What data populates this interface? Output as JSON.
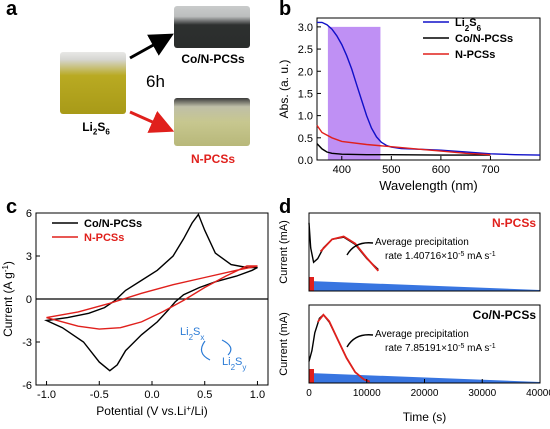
{
  "panels": {
    "a": {
      "letter": "a",
      "vial_left_label": "Li",
      "vial_left_sub": "2",
      "vial_left_s": "S",
      "vial_left_sub2": "6",
      "time_label": "6h",
      "vial_top_label": "Co/N-PCSs",
      "vial_bottom_label": "N-PCSs",
      "colors": {
        "arrow_top": "#000000",
        "arrow_bottom": "#e0201c",
        "vial_liquid_left": "#b8a81a",
        "vial_liquid_top": "#2e3130",
        "vial_liquid_bottom": "#c4c48a"
      }
    },
    "b": {
      "letter": "b"
    },
    "c": {
      "letter": "c"
    },
    "d": {
      "letter": "d"
    }
  },
  "chart_data": [
    {
      "id": "b",
      "type": "line",
      "xlabel": "Wavelength (nm)",
      "ylabel": "Abs. (a. u.)",
      "xlim": [
        350,
        800
      ],
      "ylim": [
        0,
        3.2
      ],
      "xticks": [
        400,
        500,
        600,
        700
      ],
      "yticks": [
        0.0,
        0.5,
        1.0,
        1.5,
        2.0,
        2.5,
        3.0
      ],
      "ytick_labels": [
        "0.0",
        "0.5",
        "1.0",
        "1.5",
        "2.0",
        "2.5",
        "3.0"
      ],
      "highlight_band": [
        372,
        478
      ],
      "legend_position": "top-right",
      "legend_sub_digits": {
        "Li2S6": "2,6"
      },
      "series": [
        {
          "name": "Li2S6",
          "color": "#1010c8",
          "x": [
            350,
            360,
            370,
            380,
            390,
            400,
            410,
            420,
            430,
            440,
            450,
            460,
            470,
            480,
            490,
            500,
            520,
            540,
            560,
            600,
            650,
            700,
            750,
            800
          ],
          "y": [
            3.1,
            3.1,
            3.05,
            2.95,
            2.8,
            2.6,
            2.35,
            2.05,
            1.7,
            1.35,
            1.0,
            0.72,
            0.52,
            0.4,
            0.33,
            0.29,
            0.26,
            0.25,
            0.24,
            0.22,
            0.18,
            0.14,
            0.12,
            0.11
          ]
        },
        {
          "name": "Co/N-PCSs",
          "color": "#000000",
          "x": [
            350,
            360,
            370,
            380,
            400,
            450,
            500,
            600,
            700
          ],
          "y": [
            0.37,
            0.25,
            0.18,
            0.15,
            0.13,
            0.12,
            0.12,
            0.11,
            0.11
          ]
        },
        {
          "name": "N-PCSs",
          "color": "#e0201c",
          "x": [
            350,
            360,
            380,
            400,
            450,
            500,
            550,
            600,
            650,
            700
          ],
          "y": [
            0.78,
            0.62,
            0.5,
            0.42,
            0.35,
            0.3,
            0.25,
            0.2,
            0.15,
            0.12
          ]
        }
      ]
    },
    {
      "id": "c",
      "type": "line",
      "xlabel": "Potential (V vs.Li+/Li)",
      "xlabel_parts": [
        "Potential (V vs.Li",
        "+",
        "/Li)"
      ],
      "ylabel": "Current (A g-1)",
      "ylabel_parts": [
        "Current (A g",
        "-1",
        ")"
      ],
      "xlim": [
        -1.1,
        1.1
      ],
      "ylim": [
        -6,
        6
      ],
      "xticks": [
        -1.0,
        -0.5,
        0.0,
        0.5,
        1.0
      ],
      "xtick_labels": [
        "-1.0",
        "-0.5",
        "0.0",
        "0.5",
        "1.0"
      ],
      "yticks": [
        -6,
        -3,
        0,
        3,
        6
      ],
      "legend_position": "top-left",
      "annotation": {
        "top": "Li2Sx",
        "top_parts": [
          "Li",
          "2",
          "S",
          "x"
        ],
        "bottom": "Li2Sy",
        "bottom_parts": [
          "Li",
          "2",
          "S",
          "y"
        ],
        "color": "#2b7bd6"
      },
      "series": [
        {
          "name": "Co/N-PCSs",
          "color": "#000000",
          "closed": true,
          "x": [
            -1.0,
            -0.8,
            -0.6,
            -0.45,
            -0.35,
            -0.25,
            -0.1,
            0.05,
            0.2,
            0.3,
            0.38,
            0.44,
            0.5,
            0.6,
            0.75,
            0.9,
            1.0,
            0.95,
            0.8,
            0.6,
            0.45,
            0.3,
            0.22,
            0.15,
            0.05,
            -0.1,
            -0.25,
            -0.33,
            -0.4,
            -0.5,
            -0.65,
            -0.85,
            -1.0
          ],
          "y": [
            -1.5,
            -1.3,
            -1.0,
            -0.6,
            -0.1,
            0.6,
            1.3,
            2.0,
            3.0,
            4.2,
            5.3,
            5.9,
            4.8,
            3.2,
            2.4,
            2.2,
            2.2,
            2.0,
            1.6,
            1.2,
            0.8,
            0.3,
            -0.2,
            -0.8,
            -1.6,
            -2.5,
            -3.6,
            -4.6,
            -5.0,
            -4.4,
            -3.0,
            -2.0,
            -1.5
          ]
        },
        {
          "name": "N-PCSs",
          "color": "#e0201c",
          "closed": true,
          "x": [
            -1.0,
            -0.7,
            -0.4,
            -0.1,
            0.2,
            0.5,
            0.8,
            1.0,
            0.9,
            0.7,
            0.5,
            0.3,
            0.1,
            -0.1,
            -0.3,
            -0.5,
            -0.7,
            -1.0
          ],
          "y": [
            -1.3,
            -0.9,
            -0.3,
            0.4,
            1.0,
            1.5,
            2.0,
            2.3,
            2.3,
            1.6,
            0.8,
            -0.1,
            -0.9,
            -1.6,
            -2.0,
            -2.1,
            -1.9,
            -1.3
          ]
        }
      ]
    },
    {
      "id": "d",
      "type": "line",
      "xlabel": "Time (s)",
      "xlim": [
        0,
        40000
      ],
      "xticks": [
        0,
        10000,
        20000,
        30000,
        40000
      ],
      "subplots": [
        {
          "title": "N-PCSs",
          "title_color": "#e0201c",
          "ylabel": "Current (mA)",
          "annotation_line1": "Average precipitation",
          "annotation_line2": "rate 1.40716×10-5 mA s-1",
          "annotation_parts": [
            "rate 1.40716×10",
            "-5",
            " mA s",
            "-1"
          ],
          "fill_color": "#2266dd",
          "series": [
            {
              "name": "current",
              "color": "#000000",
              "x": [
                0,
                300,
                800,
                1500,
                2500,
                4000,
                6000,
                8000,
                10000,
                12000
              ],
              "y": [
                0.95,
                0.6,
                0.4,
                0.45,
                0.6,
                0.72,
                0.75,
                0.65,
                0.45,
                0.3
              ]
            },
            {
              "name": "fit",
              "color": "#e0201c",
              "x": [
                2000,
                4000,
                6000,
                8000,
                10000,
                12000
              ],
              "y": [
                0.55,
                0.72,
                0.76,
                0.66,
                0.46,
                0.28
              ]
            }
          ]
        },
        {
          "title": "Co/N-PCSs",
          "title_color": "#000000",
          "ylabel": "Current (mA)",
          "annotation_line1": "Average precipitation",
          "annotation_line2": "rate 7.85191×10-5 mA s-1",
          "annotation_parts": [
            "rate 7.85191×10",
            "-5",
            " mA s",
            "-1"
          ],
          "fill_color": "#2266dd",
          "series": [
            {
              "name": "current",
              "color": "#000000",
              "x": [
                0,
                500,
                1000,
                1800,
                2500,
                3500,
                5000,
                6500,
                8000,
                9500,
                10500
              ],
              "y": [
                0.3,
                0.45,
                0.7,
                0.9,
                0.95,
                0.85,
                0.6,
                0.35,
                0.15,
                0.05,
                0.02
              ]
            },
            {
              "name": "fit",
              "color": "#e0201c",
              "x": [
                1500,
                2500,
                3500,
                5000,
                6500,
                8000,
                9500,
                10500
              ],
              "y": [
                0.85,
                0.95,
                0.86,
                0.6,
                0.35,
                0.15,
                0.05,
                0.02
              ]
            }
          ]
        }
      ]
    }
  ]
}
